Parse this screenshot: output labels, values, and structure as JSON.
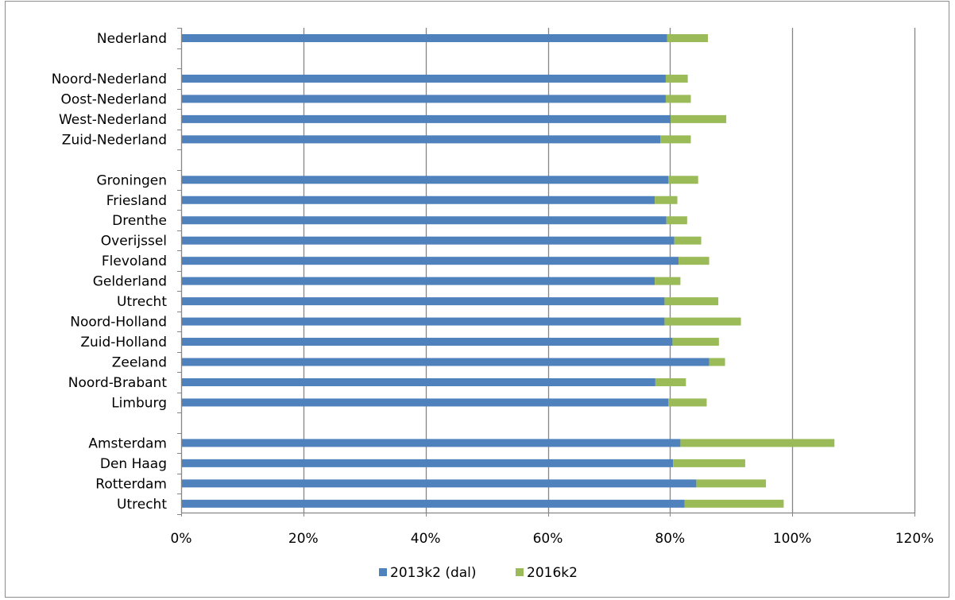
{
  "chart_data": {
    "type": "bar",
    "orientation": "horizontal",
    "stacked": true,
    "categories": [
      "Nederland",
      "",
      "Noord-Nederland",
      "Oost-Nederland",
      "West-Nederland",
      "Zuid-Nederland",
      "",
      "Groningen",
      "Friesland",
      "Drenthe",
      "Overijssel",
      "Flevoland",
      "Gelderland",
      "Utrecht",
      "Noord-Holland",
      "Zuid-Holland",
      "Zeeland",
      "Noord-Brabant",
      "Limburg",
      "",
      "Amsterdam",
      "Den Haag",
      "Rotterdam",
      "Utrecht"
    ],
    "series": [
      {
        "name": "2013k2 (dal)",
        "color": "#4f81bd",
        "values": [
          79.5,
          null,
          79.3,
          79.3,
          80.1,
          78.4,
          null,
          79.7,
          77.5,
          79.4,
          80.7,
          81.4,
          77.5,
          79.1,
          79.1,
          80.4,
          86.4,
          77.6,
          79.7,
          null,
          81.7,
          80.5,
          84.3,
          82.4
        ]
      },
      {
        "name": "2016k2",
        "color": "#9bbb59",
        "values": [
          6.7,
          null,
          3.6,
          4.1,
          9.1,
          5.0,
          null,
          4.9,
          3.7,
          3.4,
          4.4,
          5.0,
          4.2,
          8.8,
          12.5,
          7.6,
          2.6,
          5.0,
          6.3,
          null,
          25.2,
          11.8,
          11.4,
          16.2
        ]
      }
    ],
    "xlim": [
      0,
      120
    ],
    "xticks": [
      0,
      20,
      40,
      60,
      80,
      100,
      120
    ],
    "xtick_labels": [
      "0%",
      "20%",
      "40%",
      "60%",
      "80%",
      "100%",
      "120%"
    ],
    "grid": "vertical",
    "legend": "bottom",
    "title": "",
    "xlabel": "",
    "ylabel": ""
  },
  "colors": {
    "series1": "#4f81bd",
    "series2": "#9bbb59",
    "grid": "#868686",
    "axis": "#868686"
  }
}
